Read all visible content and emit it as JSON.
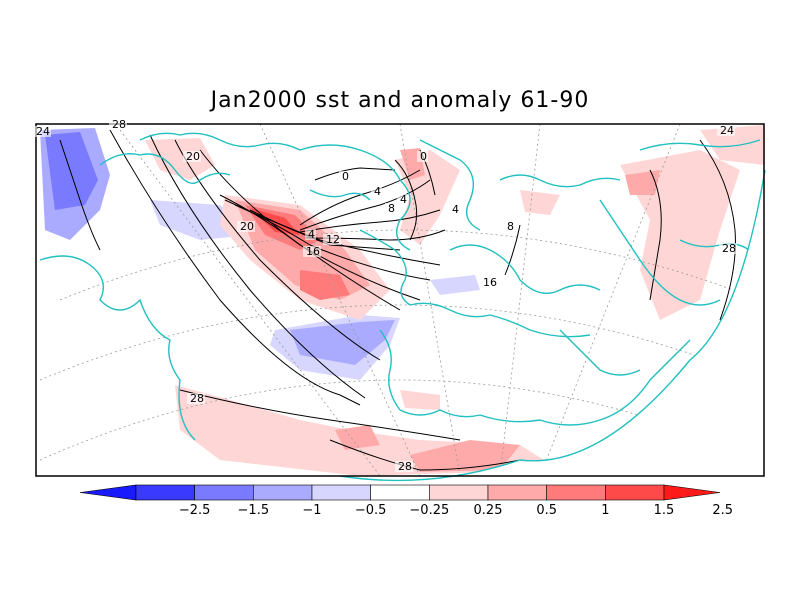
{
  "title": "Jan2000 sst and anomaly 61-90",
  "colors": {
    "coast": "#22c0c0",
    "contour": "#000000",
    "frame": "#000000"
  },
  "contour_labels": [
    "24",
    "28",
    "20",
    "0",
    "4",
    "4",
    "0",
    "4",
    "8",
    "4",
    "12",
    "16",
    "20",
    "16",
    "8",
    "24",
    "28",
    "28",
    "28"
  ],
  "colorbar": {
    "bins": [
      {
        "color": "#1a1aff"
      },
      {
        "color": "#3a3aff"
      },
      {
        "color": "#7a7aff"
      },
      {
        "color": "#aaaaff"
      },
      {
        "color": "#d6d6ff"
      },
      {
        "color": "#ffffff"
      },
      {
        "color": "#ffd6d6"
      },
      {
        "color": "#ffaaaa"
      },
      {
        "color": "#ff7a7a"
      },
      {
        "color": "#ff4a4a"
      },
      {
        "color": "#ff1a1a"
      }
    ],
    "tick_labels": [
      "−2.5",
      "−1.5",
      "−1",
      "−0.5",
      "−0.25",
      "0.25",
      "0.5",
      "1",
      "1.5",
      "2.5"
    ]
  }
}
